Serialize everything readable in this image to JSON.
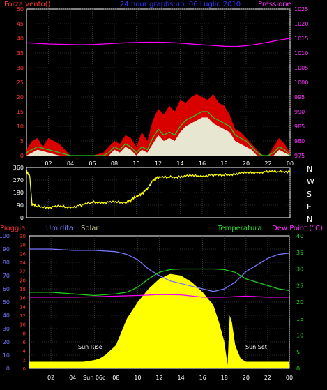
{
  "chart_data": [
    {
      "type": "line",
      "title": "24 hour graphs up: 06 Luglio 2010",
      "left_axis_title": "Forza vento()",
      "right_axis_title": "Pressione",
      "x_ticks": [
        "02",
        "04",
        "06",
        "08",
        "10",
        "12",
        "14",
        "16",
        "18",
        "20",
        "22",
        "00"
      ],
      "left_ticks": [
        "0",
        "5",
        "10",
        "15",
        "20",
        "25",
        "30",
        "35",
        "40",
        "45",
        "50"
      ],
      "right_ticks": [
        "975",
        "980",
        "985",
        "990",
        "995",
        "1000",
        "1005",
        "1010",
        "1015",
        "1020",
        "1025"
      ],
      "ylim_left": [
        0,
        50
      ],
      "ylim_right": [
        975,
        1025
      ],
      "series": [
        {
          "color": "#ff00ff",
          "axis": "right",
          "x": [
            0,
            1,
            2,
            3,
            4,
            5,
            6,
            7,
            8,
            9,
            10,
            11,
            12,
            13,
            14,
            15,
            16,
            17,
            18,
            19,
            20,
            21,
            22,
            23,
            24
          ],
          "values": [
            1013.5,
            1013.3,
            1013.1,
            1013.0,
            1012.9,
            1012.8,
            1012.9,
            1013.1,
            1013.3,
            1013.5,
            1013.6,
            1013.7,
            1013.7,
            1013.6,
            1013.4,
            1013.1,
            1012.8,
            1012.6,
            1012.3,
            1012.2,
            1012.5,
            1013.0,
            1013.7,
            1014.4,
            1015.0
          ]
        },
        {
          "color": "#ff0000",
          "axis": "left",
          "x": [
            0,
            0.5,
            1,
            1.5,
            2,
            3,
            4,
            5,
            6,
            7,
            7.5,
            8,
            8.5,
            9,
            9.5,
            10,
            10.5,
            11,
            11.5,
            12,
            12.5,
            13,
            13.5,
            14,
            14.5,
            15,
            15.5,
            16,
            16.5,
            17,
            17.5,
            18,
            18.5,
            19,
            19.5,
            20,
            20.5,
            21,
            21.5,
            22,
            22.5,
            23,
            23.5,
            24
          ],
          "values": [
            2,
            5,
            6,
            3,
            6,
            4,
            0,
            0,
            0,
            1,
            3,
            5,
            4,
            7,
            6,
            3,
            8,
            5,
            12,
            16,
            14,
            17,
            15,
            19,
            18,
            20,
            21,
            20,
            19,
            21,
            18,
            17,
            14,
            9,
            8,
            6,
            4,
            2,
            0,
            0,
            3,
            6,
            4,
            1
          ]
        },
        {
          "color": "#22cc22",
          "axis": "left",
          "x": [
            0,
            1,
            2,
            3,
            4,
            5,
            6,
            7,
            7.5,
            8,
            8.5,
            9,
            9.5,
            10,
            10.5,
            11,
            11.5,
            12,
            12.5,
            13,
            13.5,
            14,
            14.5,
            15,
            15.5,
            16,
            16.5,
            17,
            17.5,
            18,
            18.5,
            19,
            19.5,
            20,
            20.5,
            21,
            21.5,
            22,
            22.5,
            23,
            23.5,
            24
          ],
          "values": [
            1,
            3,
            2,
            1,
            0,
            0,
            0,
            0,
            1,
            3,
            2,
            4,
            3,
            1,
            3,
            2,
            6,
            9,
            7,
            8,
            7,
            10,
            12,
            13,
            14,
            15,
            15,
            13,
            12,
            11,
            10,
            7,
            6,
            5,
            3,
            1,
            0,
            0,
            1,
            3,
            2,
            0
          ]
        },
        {
          "color": "#e8ffe8",
          "axis": "left",
          "x": [
            0,
            1,
            2,
            3,
            4,
            5,
            6,
            7,
            7.5,
            8,
            8.5,
            9,
            9.5,
            10,
            10.5,
            11,
            11.5,
            12,
            12.5,
            13,
            13.5,
            14,
            14.5,
            15,
            15.5,
            16,
            16.5,
            17,
            17.5,
            18,
            18.5,
            19,
            19.5,
            20,
            20.5,
            21,
            21.5,
            22,
            22.5,
            23,
            23.5,
            24
          ],
          "values": [
            0,
            2,
            1,
            0,
            0,
            0,
            0,
            0,
            0,
            2,
            1,
            3,
            2,
            0,
            2,
            1,
            4,
            7,
            5,
            6,
            5,
            8,
            10,
            11,
            12,
            13,
            13,
            11,
            10,
            9,
            8,
            5,
            4,
            3,
            2,
            0,
            0,
            0,
            0,
            2,
            1,
            0
          ]
        }
      ]
    },
    {
      "type": "line",
      "title": "",
      "left_ticks": [
        "0",
        "90",
        "180",
        "270",
        "360"
      ],
      "right_labels": [
        "N",
        "W",
        "S",
        "E",
        "N"
      ],
      "ylim": [
        0,
        360
      ],
      "series": [
        {
          "color": "#ffff00",
          "x": [
            0,
            0.3,
            0.5,
            1,
            2,
            3,
            4,
            5,
            6,
            7,
            8,
            9,
            9.5,
            10,
            10.5,
            11,
            11.5,
            12,
            13,
            14,
            15,
            16,
            17,
            18,
            19,
            20,
            21,
            22,
            23,
            24
          ],
          "values": [
            330,
            300,
            95,
            80,
            75,
            80,
            75,
            90,
            110,
            110,
            110,
            110,
            125,
            150,
            175,
            200,
            270,
            290,
            290,
            295,
            300,
            300,
            305,
            305,
            315,
            320,
            325,
            330,
            330,
            330
          ]
        }
      ]
    },
    {
      "type": "area",
      "title": "",
      "labels": {
        "pioggia": "Pioggia",
        "umidita": "Umidita",
        "solar": "Solar",
        "temperatura": "Temperatura",
        "dew_point": "Dew Point (°C)",
        "sun_rise": "Sun Rise",
        "sun_set": "Sun Set"
      },
      "x_ticks": [
        "02",
        "04",
        "Sun 06c",
        "08",
        "10",
        "12",
        "14",
        "16",
        "18",
        "20",
        "22",
        "00"
      ],
      "humidity_ticks": [
        "0",
        "10",
        "20",
        "30",
        "40",
        "50",
        "60",
        "70",
        "80",
        "90",
        "100"
      ],
      "rain_ticks": [
        "0",
        "2",
        "4",
        "6",
        "8",
        "10",
        "12",
        "14",
        "16",
        "18",
        "20",
        "22",
        "24",
        "26",
        "28",
        "30"
      ],
      "temp_ticks": [
        "0",
        "5",
        "10",
        "15",
        "20",
        "25",
        "30",
        "35",
        "40"
      ],
      "ylim_humidity": [
        0,
        100
      ],
      "ylim_temp": [
        0,
        40
      ],
      "series": [
        {
          "name": "Umidita",
          "color": "#7777ff",
          "axis": "humidity",
          "x": [
            0,
            2,
            4,
            6,
            8,
            9,
            10,
            11,
            12,
            13,
            14,
            15,
            16,
            17,
            18,
            19,
            20,
            21,
            22,
            23,
            24
          ],
          "values": [
            90,
            90,
            89,
            89,
            88,
            86,
            82,
            75,
            70,
            66,
            64,
            62,
            60,
            58,
            60,
            65,
            73,
            78,
            83,
            86,
            87
          ]
        },
        {
          "name": "Temperatura",
          "color": "#22cc22",
          "axis": "temp",
          "x": [
            0,
            2,
            4,
            6,
            8,
            9,
            10,
            11,
            12,
            13,
            14,
            15,
            16,
            17,
            18,
            19,
            20,
            21,
            22,
            23,
            24
          ],
          "values": [
            23,
            23,
            22.5,
            22,
            22.5,
            23,
            24.5,
            27,
            29,
            29.8,
            30,
            30,
            30,
            30,
            29.8,
            29,
            27,
            26,
            25,
            24,
            23.5
          ]
        },
        {
          "name": "Dew Point",
          "color": "#ff00ff",
          "axis": "temp",
          "x": [
            0,
            2,
            4,
            6,
            8,
            10,
            12,
            14,
            16,
            18,
            20,
            22,
            24
          ],
          "values": [
            21.5,
            21.5,
            21.5,
            21.6,
            21.8,
            22,
            22.3,
            22.2,
            21.5,
            21.5,
            21.8,
            21.5,
            21.5
          ]
        },
        {
          "name": "Solar",
          "color": "#ffff00",
          "axis": "temp",
          "x": [
            0,
            5,
            6,
            6.5,
            7,
            8,
            9,
            10,
            11,
            12,
            13,
            14,
            15,
            16,
            17,
            17.5,
            18,
            18.3,
            18.5,
            18.7,
            19,
            19.5,
            20,
            21,
            24
          ],
          "values": [
            2,
            2,
            2.5,
            3,
            4,
            7,
            15,
            20,
            24,
            27,
            28.5,
            28,
            26,
            23,
            19,
            14,
            8,
            1,
            16,
            14,
            7,
            3,
            2,
            2,
            2
          ]
        }
      ]
    }
  ]
}
